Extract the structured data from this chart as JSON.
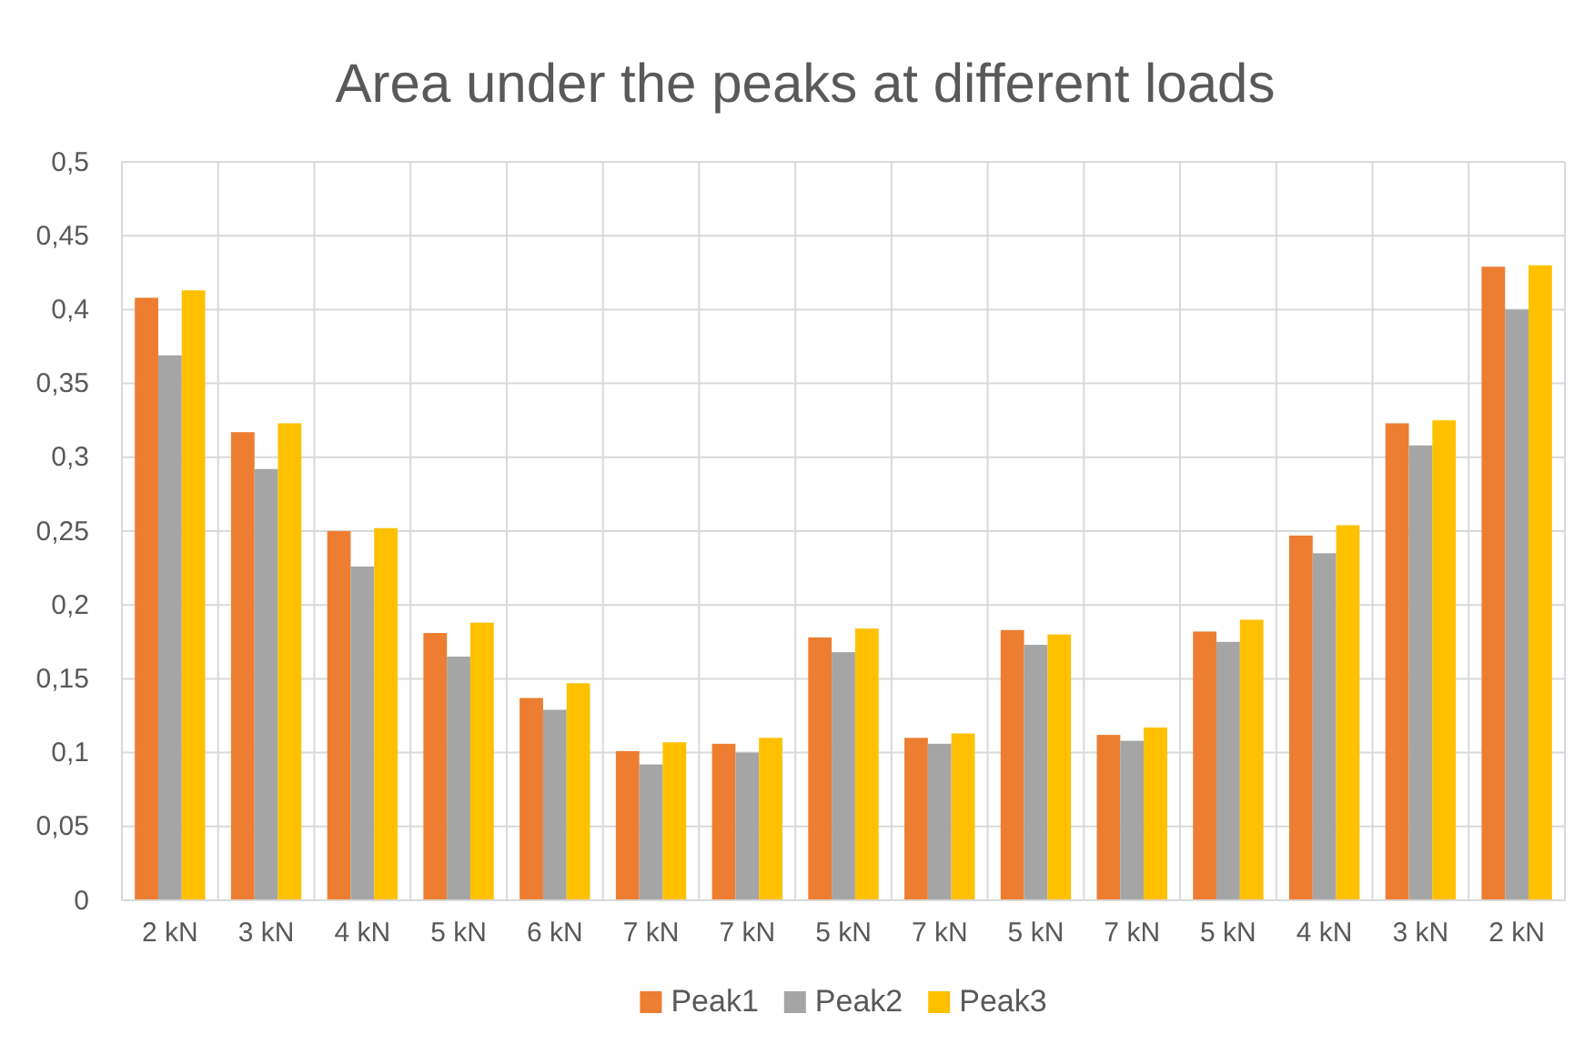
{
  "chart_data": {
    "type": "bar",
    "title": "Area under the peaks at different loads",
    "categories": [
      "2 kN",
      "3 kN",
      "4 kN",
      "5 kN",
      "6 kN",
      "7 kN",
      "7 kN",
      "5 kN",
      "7 kN",
      "5 kN",
      "7 kN",
      "5 kN",
      "4 kN",
      "3 kN",
      "2 kN"
    ],
    "series": [
      {
        "name": "Peak1",
        "color": "#ed7d31",
        "values": [
          0.408,
          0.317,
          0.25,
          0.181,
          0.137,
          0.101,
          0.106,
          0.178,
          0.11,
          0.183,
          0.112,
          0.182,
          0.247,
          0.323,
          0.429
        ]
      },
      {
        "name": "Peak2",
        "color": "#a5a5a5",
        "values": [
          0.369,
          0.292,
          0.226,
          0.165,
          0.129,
          0.092,
          0.1,
          0.168,
          0.106,
          0.173,
          0.108,
          0.175,
          0.235,
          0.308,
          0.4
        ]
      },
      {
        "name": "Peak3",
        "color": "#ffc000",
        "values": [
          0.413,
          0.323,
          0.252,
          0.188,
          0.147,
          0.107,
          0.11,
          0.184,
          0.113,
          0.18,
          0.117,
          0.19,
          0.254,
          0.325,
          0.43
        ]
      }
    ],
    "ylim": [
      0,
      0.5
    ],
    "yticks": [
      {
        "value": 0,
        "label": "0"
      },
      {
        "value": 0.05,
        "label": "0,05"
      },
      {
        "value": 0.1,
        "label": "0,1"
      },
      {
        "value": 0.15,
        "label": "0,15"
      },
      {
        "value": 0.2,
        "label": "0,2"
      },
      {
        "value": 0.25,
        "label": "0,25"
      },
      {
        "value": 0.3,
        "label": "0,3"
      },
      {
        "value": 0.35,
        "label": "0,35"
      },
      {
        "value": 0.4,
        "label": "0,4"
      },
      {
        "value": 0.45,
        "label": "0,45"
      },
      {
        "value": 0.5,
        "label": "0,5"
      }
    ],
    "grid": true,
    "legend": "bottom"
  }
}
